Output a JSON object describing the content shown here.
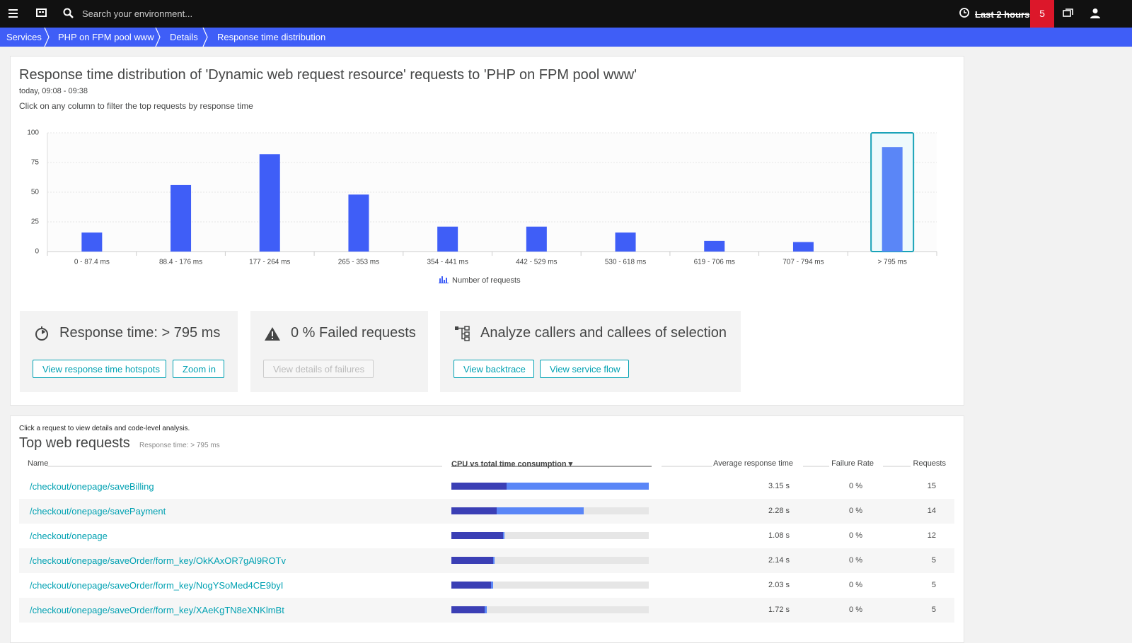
{
  "topbar": {
    "search": "Search your environment...",
    "timeframe": "Last 2 hours",
    "problems": 5
  },
  "breadcrumbs": [
    "Services",
    "PHP on FPM pool www",
    "Details",
    "Response time distribution"
  ],
  "header": {
    "title": "Response time distribution of 'Dynamic web request resource' requests to 'PHP on FPM pool www'",
    "timeframe": "today, 09:08 - 09:38",
    "hint": "Click on any column to filter the top requests by response time"
  },
  "chart_data": {
    "type": "bar",
    "categories": [
      "0 - 87.4 ms",
      "88.4 - 176 ms",
      "177 - 264 ms",
      "265 - 353 ms",
      "354 - 441 ms",
      "442 - 529 ms",
      "530 - 618 ms",
      "619 - 706 ms",
      "707 - 794 ms",
      "> 795 ms"
    ],
    "series": [
      {
        "name": "Number of requests",
        "color": "#3f5ef7",
        "values": [
          16,
          56,
          82,
          48,
          21,
          21,
          16,
          9,
          8,
          88
        ]
      }
    ],
    "ylim": [
      0,
      100
    ],
    "yticks": [
      0,
      25,
      50,
      75,
      100
    ],
    "grid": true,
    "selected_index": 9,
    "selected_color": "#5a86f7"
  },
  "panels": [
    {
      "title": "Response time: > 795 ms",
      "buttons": [
        "View response time hotspots",
        "Zoom in"
      ]
    },
    {
      "title": "0 % Failed requests",
      "buttons": [
        "View details of failures"
      ]
    },
    {
      "title": "Analyze callers and callees of selection",
      "buttons": [
        "View backtrace",
        "View service flow"
      ]
    }
  ],
  "table": {
    "hint": "Click a request to view details and code-level analysis.",
    "title": "Top web requests",
    "subtitle": "Response time: > 795 ms",
    "columns": [
      "Name",
      "CPU vs total time consumption ▾",
      "Average response time",
      "Failure Rate",
      "Requests"
    ],
    "rows": [
      {
        "name": "/checkout/onepage/saveBilling",
        "cpu": 28,
        "total": 100,
        "avg": "3.15 s",
        "failure": "0 %",
        "requests": 15
      },
      {
        "name": "/checkout/onepage/savePayment",
        "cpu": 23,
        "total": 67,
        "avg": "2.28 s",
        "failure": "0 %",
        "requests": 14
      },
      {
        "name": "/checkout/onepage",
        "cpu": 26,
        "total": 27,
        "avg": "1.08 s",
        "failure": "0 %",
        "requests": 12
      },
      {
        "name": "/checkout/onepage/saveOrder/form_key/OkKAxOR7gAl9ROTv",
        "cpu": 21,
        "total": 22,
        "avg": "2.14 s",
        "failure": "0 %",
        "requests": 5
      },
      {
        "name": "/checkout/onepage/saveOrder/form_key/NogYSoMed4CE9byI",
        "cpu": 20,
        "total": 21,
        "avg": "2.03 s",
        "failure": "0 %",
        "requests": 5
      },
      {
        "name": "/checkout/onepage/saveOrder/form_key/XAeKgTN8eXNKlmBt",
        "cpu": 17,
        "total": 18,
        "avg": "1.72 s",
        "failure": "0 %",
        "requests": 5
      }
    ]
  }
}
